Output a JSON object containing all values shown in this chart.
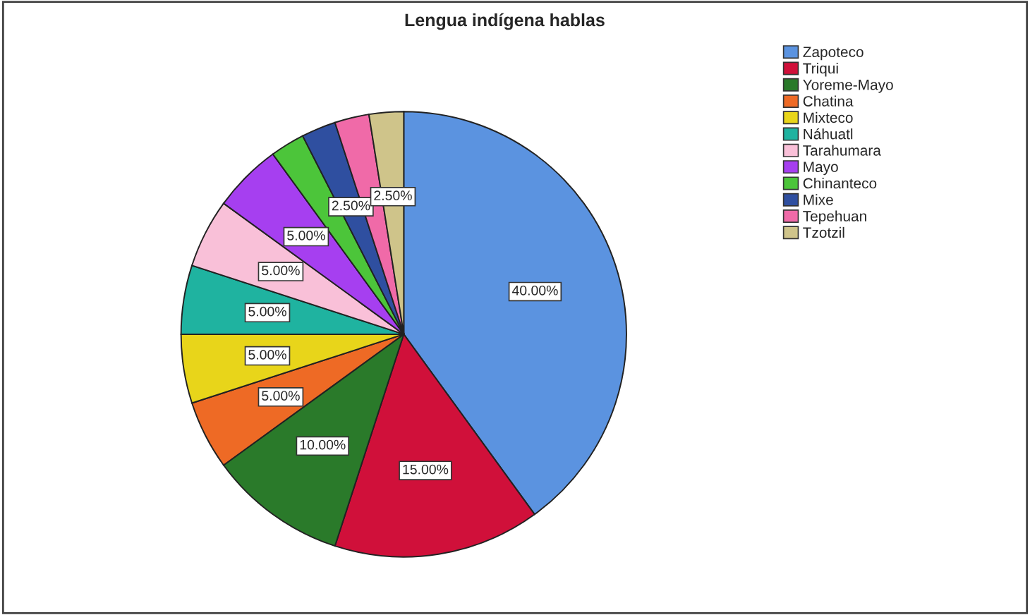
{
  "chart_data": {
    "type": "pie",
    "title": "Lengua indígena hablas",
    "categories": [
      "Zapoteco",
      "Triqui",
      "Yoreme-Mayo",
      "Chatina",
      "Mixteco",
      "Náhuatl",
      "Tarahumara",
      "Mayo",
      "Chinanteco",
      "Mixe",
      "Tepehuan",
      "Tzotzil"
    ],
    "values": [
      40,
      15,
      10,
      5,
      5,
      5,
      5,
      5,
      2.5,
      2.5,
      2.5,
      2.5
    ],
    "colors": [
      "#5b93e0",
      "#d0103a",
      "#2a7a2a",
      "#ee6a25",
      "#e8d51a",
      "#1fb3a0",
      "#f9c0d8",
      "#a63ff0",
      "#4cc53a",
      "#2f4fa0",
      "#f06aa8",
      "#cfc48a"
    ],
    "value_labels": [
      "40.00%",
      "15.00%",
      "10.00%",
      "5.00%",
      "5.00%",
      "5.00%",
      "5.00%",
      "5.00%",
      null,
      "2.50%",
      null,
      "2.50%"
    ],
    "legend": "top right"
  }
}
